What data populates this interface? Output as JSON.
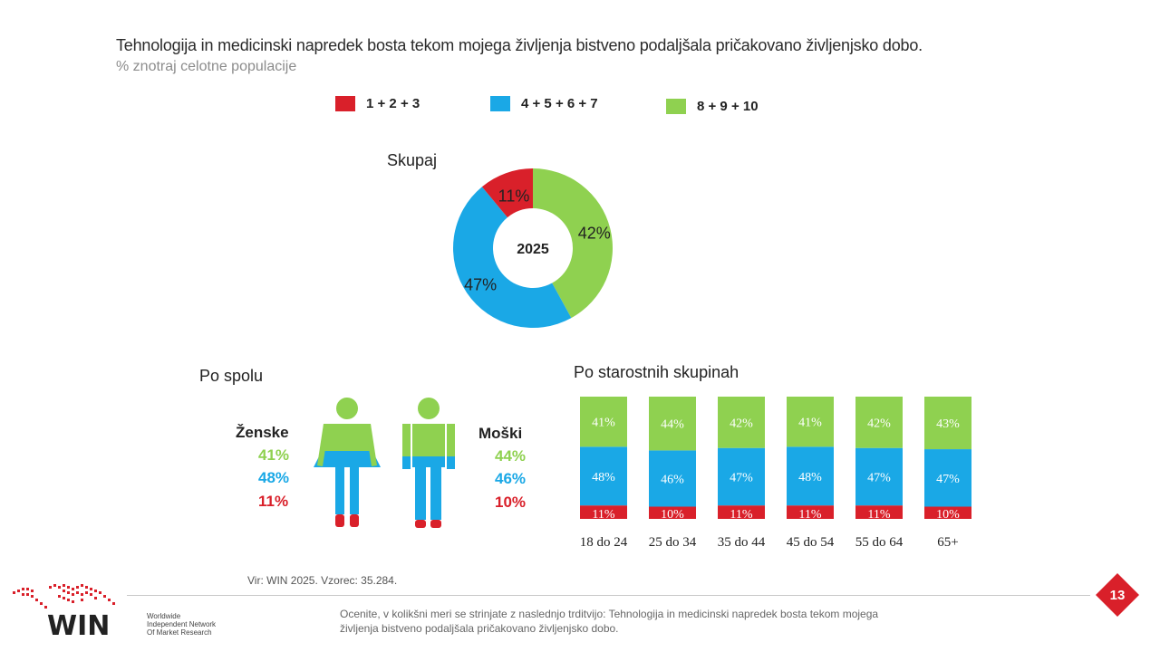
{
  "title": "Tehnologija in medicinski napredek bosta tekom mojega življenja bistveno podaljšala pričakovano življenjsko dobo.",
  "subtitle": "% znotraj celotne populacije",
  "colors": {
    "red": "#d9202a",
    "blue": "#1aa8e6",
    "green": "#8fd150",
    "header": "#2b2b2b"
  },
  "legend": [
    {
      "label": "1 + 2 + 3",
      "color": "#d9202a"
    },
    {
      "label": "4 + 5 + 6 + 7",
      "color": "#1aa8e6"
    },
    {
      "label": "8 + 9 + 10",
      "color": "#8fd150"
    }
  ],
  "chart_data": [
    {
      "type": "pie",
      "title": "Skupaj",
      "center_label": "2025",
      "slices": [
        {
          "label": "8 + 9 + 10",
          "value": 42,
          "display": "42%"
        },
        {
          "label": "4 + 5 + 6 + 7",
          "value": 47,
          "display": "47%"
        },
        {
          "label": "1 + 2 + 3",
          "value": 11,
          "display": "11%"
        }
      ]
    },
    {
      "type": "bar",
      "title": "Po spolu",
      "categories": [
        "Ženske",
        "Moški"
      ],
      "series": [
        {
          "name": "8 + 9 + 10",
          "values": [
            41,
            44
          ],
          "display": [
            "41%",
            "44%"
          ]
        },
        {
          "name": "4 + 5 + 6 + 7",
          "values": [
            48,
            46
          ],
          "display": [
            "48%",
            "46%"
          ]
        },
        {
          "name": "1 + 2 + 3",
          "values": [
            11,
            10
          ],
          "display": [
            "11%",
            "10%"
          ]
        }
      ]
    },
    {
      "type": "bar",
      "stacked": true,
      "title": "Po starostnih skupinah",
      "categories": [
        "18 do 24",
        "25 do 34",
        "35 do 44",
        "45 do 54",
        "55 do 64",
        "65+"
      ],
      "series": [
        {
          "name": "1 + 2 + 3",
          "values": [
            11,
            10,
            11,
            11,
            11,
            10
          ],
          "display": [
            "11%",
            "10%",
            "11%",
            "11%",
            "11%",
            "10%"
          ]
        },
        {
          "name": "4 + 5 + 6 + 7",
          "values": [
            48,
            46,
            47,
            48,
            47,
            47
          ],
          "display": [
            "48%",
            "46%",
            "47%",
            "48%",
            "47%",
            "47%"
          ]
        },
        {
          "name": "8 + 9 + 10",
          "values": [
            41,
            44,
            42,
            41,
            42,
            43
          ],
          "display": [
            "41%",
            "44%",
            "42%",
            "41%",
            "42%",
            "43%"
          ]
        }
      ],
      "ylim": [
        0,
        100
      ]
    }
  ],
  "footer": {
    "source": "Vir: WIN 2025.  Vzorec: 35.284.",
    "question": "Ocenite, v kolikšni meri se strinjate z naslednjo trditvijo: Tehnologija in medicinski napredek bosta tekom mojega življenja bistveno podaljšala pričakovano življenjsko dobo.",
    "page_number": "13",
    "logo_text": "WIN",
    "logo_caption": [
      "Worldwide",
      "Independent Network",
      "Of Market Research"
    ]
  }
}
